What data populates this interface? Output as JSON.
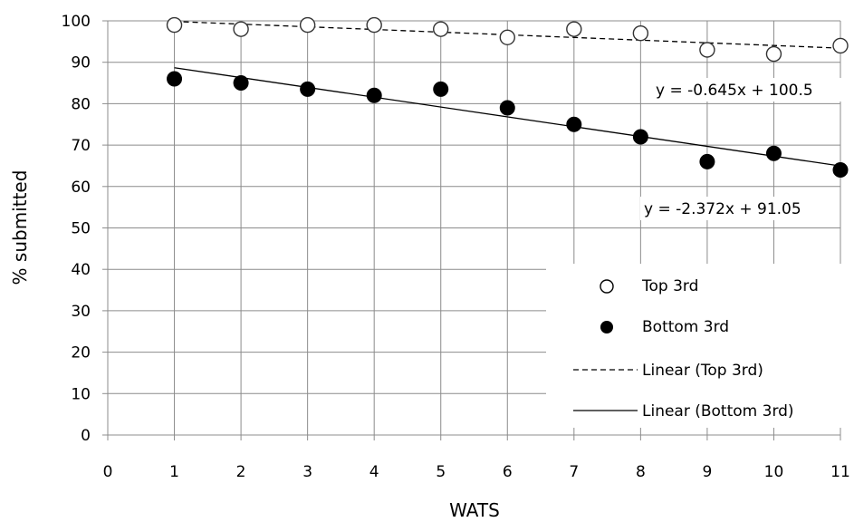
{
  "chart_data": {
    "type": "scatter",
    "xlabel": "WATS",
    "ylabel": "% submitted",
    "xlim": [
      0,
      11
    ],
    "ylim": [
      0,
      100
    ],
    "xticks": [
      0,
      1,
      2,
      3,
      4,
      5,
      6,
      7,
      8,
      9,
      10,
      11
    ],
    "yticks": [
      0,
      10,
      20,
      30,
      40,
      50,
      60,
      70,
      80,
      90,
      100
    ],
    "grid": "vertical and horizontal",
    "legend_position": "bottom-right",
    "series": [
      {
        "name": "Top 3rd",
        "marker": "open-circle",
        "x": [
          1,
          2,
          3,
          4,
          5,
          6,
          7,
          8,
          9,
          10,
          11
        ],
        "y": [
          99,
          98,
          99,
          99,
          98,
          96,
          98,
          97,
          93,
          92,
          94
        ]
      },
      {
        "name": "Bottom 3rd",
        "marker": "filled-circle",
        "x": [
          1,
          2,
          3,
          4,
          5,
          6,
          7,
          8,
          9,
          10,
          11
        ],
        "y": [
          86,
          85,
          83.5,
          82,
          83.5,
          79,
          75,
          72,
          66,
          68,
          64
        ]
      }
    ],
    "trendlines": [
      {
        "name": "Linear (Top 3rd)",
        "style": "dashed",
        "slope": -0.645,
        "intercept": 100.5,
        "equation": "y = -0.645x + 100.5"
      },
      {
        "name": "Linear (Bottom 3rd)",
        "style": "solid",
        "slope": -2.372,
        "intercept": 91.05,
        "equation": "y = -2.372x + 91.05"
      }
    ]
  }
}
